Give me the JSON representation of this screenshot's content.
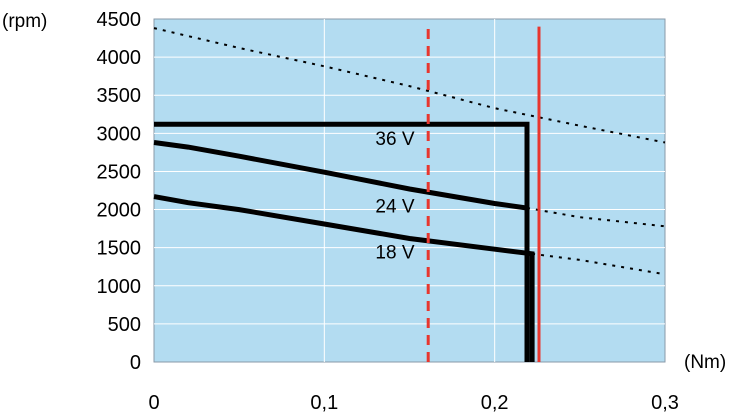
{
  "chart_data": {
    "type": "line",
    "x_unit_label": "(Nm)",
    "y_unit_label": "(rpm)",
    "xlim": [
      0,
      0.3
    ],
    "ylim": [
      0,
      4500
    ],
    "x_ticks": [
      0,
      0.1,
      0.2,
      0.3
    ],
    "x_tick_labels": [
      "0",
      "0,1",
      "0,2",
      "0,3"
    ],
    "y_ticks": [
      0,
      500,
      1000,
      1500,
      2000,
      2500,
      3000,
      3500,
      4000,
      4500
    ],
    "y_tick_labels": [
      "0",
      "500",
      "1000",
      "1500",
      "2000",
      "2500",
      "3000",
      "3500",
      "4000",
      "4500"
    ],
    "grid": true,
    "background_color": "#b3dcf1",
    "series": [
      {
        "name": "36 V",
        "style": "solid",
        "color": "#000000",
        "x": [
          0,
          0.219,
          0.219
        ],
        "y": [
          3120,
          3120,
          0
        ]
      },
      {
        "name": "24 V",
        "style": "solid",
        "color": "#000000",
        "x": [
          0,
          0.02,
          0.05,
          0.1,
          0.15,
          0.2,
          0.219,
          0.219
        ],
        "y": [
          2880,
          2820,
          2700,
          2490,
          2270,
          2080,
          2020,
          0
        ]
      },
      {
        "name": "18 V",
        "style": "solid",
        "color": "#000000",
        "x": [
          0,
          0.02,
          0.05,
          0.1,
          0.15,
          0.2,
          0.222,
          0.222
        ],
        "y": [
          2170,
          2090,
          2000,
          1810,
          1620,
          1480,
          1420,
          0
        ]
      },
      {
        "style": "dotted",
        "color": "#000000",
        "x": [
          0,
          0.05,
          0.1,
          0.15,
          0.2,
          0.25,
          0.3
        ],
        "y": [
          4380,
          4120,
          3880,
          3620,
          3330,
          3100,
          2880
        ]
      },
      {
        "style": "dotted",
        "color": "#000000",
        "x": [
          0.219,
          0.25,
          0.3
        ],
        "y": [
          2020,
          1900,
          1780
        ]
      },
      {
        "style": "dotted",
        "color": "#000000",
        "x": [
          0.222,
          0.25,
          0.3
        ],
        "y": [
          1420,
          1340,
          1150
        ]
      },
      {
        "style": "dashed",
        "color": "#e8362e",
        "x": [
          0.161,
          0.161
        ],
        "y": [
          0,
          4400
        ]
      },
      {
        "style": "solid",
        "color": "#e8362e",
        "x": [
          0.226,
          0.226
        ],
        "y": [
          0,
          4400
        ]
      }
    ],
    "annotations": [
      {
        "text": "36 V",
        "x": 0.13,
        "y": 2850
      },
      {
        "text": "24 V",
        "x": 0.13,
        "y": 1960
      },
      {
        "text": "18 V",
        "x": 0.13,
        "y": 1360
      }
    ]
  }
}
